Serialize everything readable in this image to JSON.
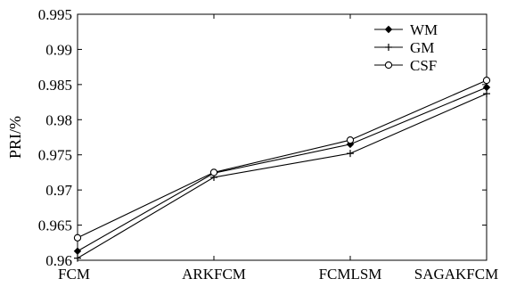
{
  "chart_data": {
    "type": "line",
    "title": "",
    "xlabel": "",
    "ylabel": "PRI/%",
    "categories": [
      "FCM",
      "ARKFCM",
      "FCMLSM",
      "SAGAKFCM"
    ],
    "ylim": [
      0.96,
      0.995
    ],
    "yticks": [
      0.96,
      0.965,
      0.97,
      0.975,
      0.98,
      0.985,
      0.99,
      0.995
    ],
    "ytick_labels": [
      "0.96",
      "0.965",
      "0.97",
      "0.975",
      "0.98",
      "0.985",
      "0.99",
      "0.995"
    ],
    "grid": false,
    "legend_position": "top-right",
    "series": [
      {
        "name": "WM",
        "marker": "diamond",
        "values": [
          0.9613,
          0.9724,
          0.9765,
          0.9846
        ]
      },
      {
        "name": "GM",
        "marker": "plus",
        "values": [
          0.9603,
          0.9718,
          0.9752,
          0.9837
        ]
      },
      {
        "name": "CSF",
        "marker": "circle",
        "values": [
          0.9632,
          0.9725,
          0.9771,
          0.9856
        ]
      }
    ],
    "colors": {
      "line": "#000000",
      "background": "#ffffff"
    }
  }
}
